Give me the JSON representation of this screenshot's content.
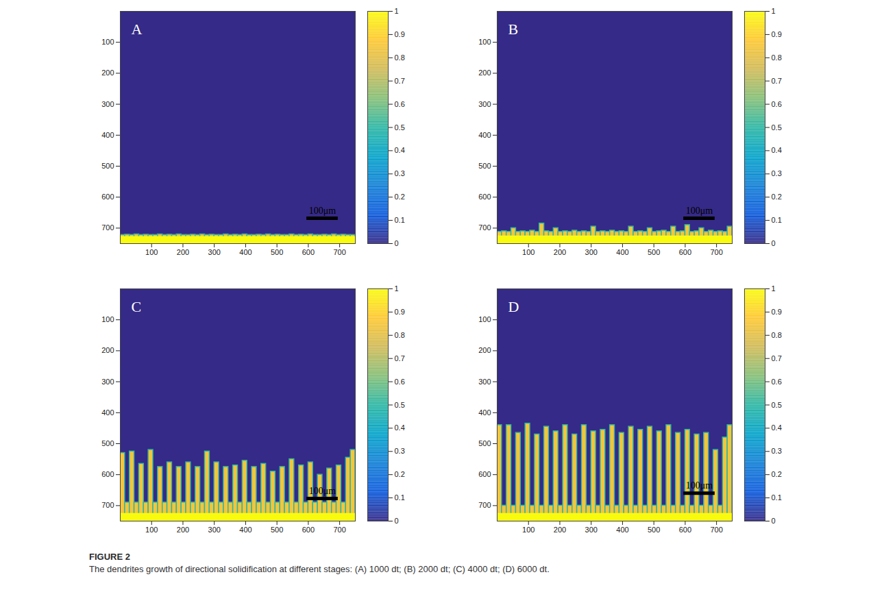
{
  "figure": {
    "title": "FIGURE 2",
    "caption": "The dendrites growth of directional solidification at different stages: (A) 1000 dt; (B) 2000 dt; (C) 4000 dt; (D) 6000 dt."
  },
  "chart_data": [
    {
      "type": "heatmap",
      "title": "A",
      "xlim": [
        0,
        750
      ],
      "ylim": [
        750,
        0
      ],
      "xticks": [
        100,
        200,
        300,
        400,
        500,
        600,
        700
      ],
      "yticks": [
        100,
        200,
        300,
        400,
        500,
        600,
        700
      ],
      "x_edges": [
        0,
        15,
        30,
        45,
        60,
        75,
        90,
        105,
        120,
        135,
        150,
        165,
        180,
        195,
        210,
        225,
        240,
        255,
        270,
        285,
        300,
        315,
        330,
        345,
        360,
        375,
        390,
        405,
        420,
        435,
        450,
        465,
        480,
        495,
        510,
        525,
        540,
        555,
        570,
        585,
        600,
        615,
        630,
        645,
        660,
        675,
        690,
        705,
        720,
        735,
        750
      ],
      "front": [
        722,
        721,
        722,
        720,
        722,
        721,
        722,
        722,
        720,
        722,
        721,
        722,
        720,
        722,
        722,
        721,
        722,
        720,
        722,
        721,
        722,
        722,
        720,
        722,
        721,
        722,
        720,
        722,
        722,
        721,
        722,
        720,
        722,
        721,
        722,
        722,
        720,
        722,
        721,
        722,
        720,
        722,
        722,
        721,
        722,
        720,
        722,
        721,
        722,
        722
      ],
      "liquid_value": 0,
      "solid_value": 0.85,
      "interface_value": 0.5,
      "base_top": 727,
      "base_value": 1,
      "colorbar": {
        "lim": [
          0,
          1
        ],
        "ticks": [
          0,
          0.1,
          0.2,
          0.3,
          0.4,
          0.5,
          0.6,
          0.7,
          0.8,
          0.9,
          1
        ],
        "colors": [
          "#352a87",
          "#0f5cdd",
          "#1481d6",
          "#06a4ca",
          "#2eb7a4",
          "#87bf77",
          "#d1bb59",
          "#fec832",
          "#f9fb0e"
        ]
      },
      "scale_bar": {
        "label": "100μm",
        "x": [
          595,
          695
        ],
        "y": 668
      }
    },
    {
      "type": "heatmap",
      "title": "B",
      "xlim": [
        0,
        750
      ],
      "ylim": [
        750,
        0
      ],
      "xticks": [
        100,
        200,
        300,
        400,
        500,
        600,
        700
      ],
      "yticks": [
        100,
        200,
        300,
        400,
        500,
        600,
        700
      ],
      "x_edges": [
        0,
        15,
        30,
        45,
        60,
        75,
        90,
        105,
        120,
        135,
        150,
        165,
        180,
        195,
        210,
        225,
        240,
        255,
        270,
        285,
        300,
        315,
        330,
        345,
        360,
        375,
        390,
        405,
        420,
        435,
        450,
        465,
        480,
        495,
        510,
        525,
        540,
        555,
        570,
        585,
        600,
        615,
        630,
        645,
        660,
        675,
        690,
        705,
        720,
        735,
        750
      ],
      "front": [
        712,
        710,
        712,
        700,
        712,
        710,
        712,
        708,
        712,
        685,
        710,
        712,
        700,
        712,
        710,
        712,
        708,
        712,
        710,
        712,
        695,
        712,
        710,
        712,
        708,
        712,
        710,
        712,
        695,
        712,
        710,
        712,
        700,
        712,
        710,
        708,
        712,
        695,
        712,
        710,
        690,
        712,
        710,
        700,
        712,
        708,
        712,
        710,
        712,
        695
      ],
      "liquid_value": 0,
      "solid_value": 0.85,
      "interface_value": 0.5,
      "base_top": 725,
      "base_value": 1,
      "colorbar": {
        "lim": [
          0,
          1
        ],
        "ticks": [
          0,
          0.1,
          0.2,
          0.3,
          0.4,
          0.5,
          0.6,
          0.7,
          0.8,
          0.9,
          1
        ],
        "colors": [
          "#352a87",
          "#0f5cdd",
          "#1481d6",
          "#06a4ca",
          "#2eb7a4",
          "#87bf77",
          "#d1bb59",
          "#fec832",
          "#f9fb0e"
        ]
      },
      "scale_bar": {
        "label": "100μm",
        "x": [
          595,
          695
        ],
        "y": 668
      }
    },
    {
      "type": "heatmap",
      "title": "C",
      "xlim": [
        0,
        750
      ],
      "ylim": [
        750,
        0
      ],
      "xticks": [
        100,
        200,
        300,
        400,
        500,
        600,
        700
      ],
      "yticks": [
        100,
        200,
        300,
        400,
        500,
        600,
        700
      ],
      "x_edges": [
        0,
        15,
        30,
        45,
        60,
        75,
        90,
        105,
        120,
        135,
        150,
        165,
        180,
        195,
        210,
        225,
        240,
        255,
        270,
        285,
        300,
        315,
        330,
        345,
        360,
        375,
        390,
        405,
        420,
        435,
        450,
        465,
        480,
        495,
        510,
        525,
        540,
        555,
        570,
        585,
        600,
        615,
        630,
        645,
        660,
        675,
        690,
        705,
        720,
        735,
        750
      ],
      "front": [
        530,
        690,
        525,
        690,
        565,
        690,
        520,
        690,
        575,
        690,
        560,
        690,
        575,
        690,
        560,
        690,
        575,
        690,
        525,
        690,
        560,
        690,
        575,
        690,
        570,
        690,
        555,
        690,
        575,
        690,
        565,
        690,
        590,
        690,
        575,
        690,
        550,
        690,
        570,
        690,
        560,
        690,
        600,
        690,
        580,
        690,
        570,
        690,
        545,
        520
      ],
      "liquid_value": 0,
      "solid_value": 0.85,
      "interface_value": 0.5,
      "base_top": 725,
      "base_value": 1,
      "colorbar": {
        "lim": [
          0,
          1
        ],
        "ticks": [
          0,
          0.1,
          0.2,
          0.3,
          0.4,
          0.5,
          0.6,
          0.7,
          0.8,
          0.9,
          1
        ],
        "colors": [
          "#352a87",
          "#0f5cdd",
          "#1481d6",
          "#06a4ca",
          "#2eb7a4",
          "#87bf77",
          "#d1bb59",
          "#fec832",
          "#f9fb0e"
        ]
      },
      "scale_bar": {
        "label": "100μm",
        "x": [
          595,
          695
        ],
        "y": 677
      }
    },
    {
      "type": "heatmap",
      "title": "D",
      "xlim": [
        0,
        750
      ],
      "ylim": [
        750,
        0
      ],
      "xticks": [
        100,
        200,
        300,
        400,
        500,
        600,
        700
      ],
      "yticks": [
        100,
        200,
        300,
        400,
        500,
        600,
        700
      ],
      "x_edges": [
        0,
        15,
        30,
        45,
        60,
        75,
        90,
        105,
        120,
        135,
        150,
        165,
        180,
        195,
        210,
        225,
        240,
        255,
        270,
        285,
        300,
        315,
        330,
        345,
        360,
        375,
        390,
        405,
        420,
        435,
        450,
        465,
        480,
        495,
        510,
        525,
        540,
        555,
        570,
        585,
        600,
        615,
        630,
        645,
        660,
        675,
        690,
        705,
        720,
        735,
        750
      ],
      "front": [
        440,
        700,
        440,
        700,
        465,
        700,
        435,
        700,
        470,
        700,
        445,
        700,
        460,
        700,
        440,
        700,
        470,
        700,
        440,
        700,
        460,
        700,
        455,
        700,
        440,
        700,
        465,
        700,
        445,
        700,
        455,
        700,
        445,
        700,
        460,
        700,
        440,
        700,
        465,
        700,
        455,
        700,
        470,
        700,
        465,
        700,
        520,
        700,
        480,
        440
      ],
      "liquid_value": 0,
      "solid_value": 0.85,
      "interface_value": 0.5,
      "base_top": 725,
      "base_value": 1,
      "colorbar": {
        "lim": [
          0,
          1
        ],
        "ticks": [
          0,
          0.1,
          0.2,
          0.3,
          0.4,
          0.5,
          0.6,
          0.7,
          0.8,
          0.9,
          1
        ],
        "colors": [
          "#352a87",
          "#0f5cdd",
          "#1481d6",
          "#06a4ca",
          "#2eb7a4",
          "#87bf77",
          "#d1bb59",
          "#fec832",
          "#f9fb0e"
        ]
      },
      "scale_bar": {
        "label": "100μm",
        "x": [
          595,
          695
        ],
        "y": 660
      }
    }
  ]
}
